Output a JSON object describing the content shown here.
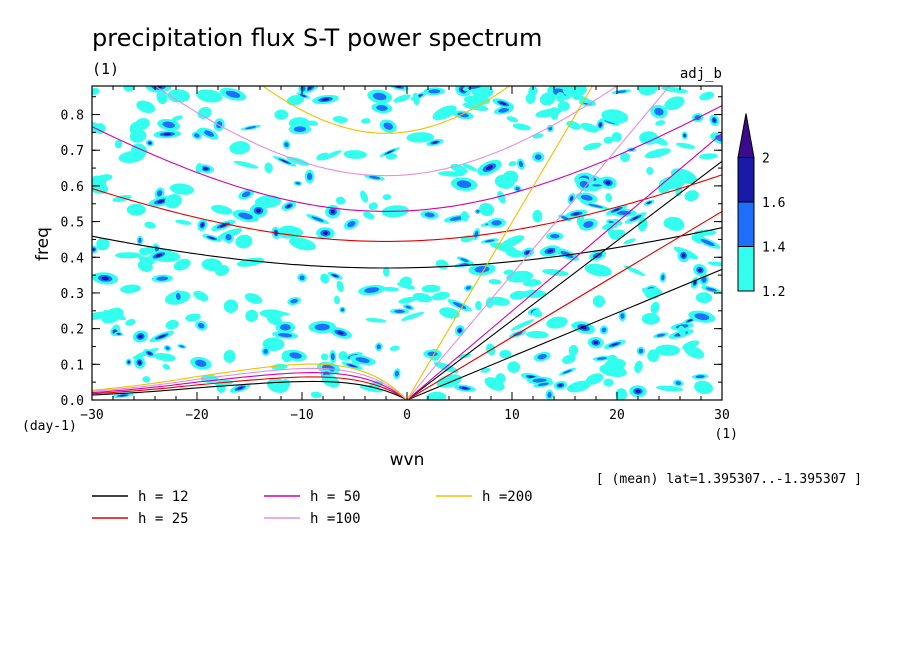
{
  "chart_data": {
    "type": "heatmap",
    "title": "precipitation flux S-T power spectrum",
    "subtitle_left": "(1)",
    "subtitle_right": "adj_b",
    "xlabel": "wvn",
    "ylabel": "freq",
    "x_unit": "(1)",
    "y_unit": "(day-1)",
    "xlim": [
      -30,
      30
    ],
    "ylim": [
      0,
      0.88
    ],
    "x_ticks": [
      -30,
      -20,
      -10,
      0,
      10,
      20,
      30
    ],
    "y_ticks": [
      0.0,
      0.1,
      0.2,
      0.3,
      0.4,
      0.5,
      0.6,
      0.7,
      0.8
    ],
    "colorbar": {
      "levels": [
        "1.2",
        "1.4",
        "1.6",
        "2"
      ],
      "colors": [
        "#33ffee",
        "#1f6fff",
        "#1a1aa8",
        "#3c0a8c"
      ]
    },
    "footnote": "[ (mean) lat=1.395307..-1.395307 ]",
    "dispersion_curves": [
      {
        "label": "h = 12",
        "h": 12,
        "color": "#000000"
      },
      {
        "label": "h = 25",
        "h": 25,
        "color": "#e00000"
      },
      {
        "label": "h = 50",
        "h": 50,
        "color": "#d000b0"
      },
      {
        "label": "h =100",
        "h": 100,
        "color": "#e090e0"
      },
      {
        "label": "h =200",
        "h": 200,
        "color": "#f0c000"
      }
    ]
  }
}
